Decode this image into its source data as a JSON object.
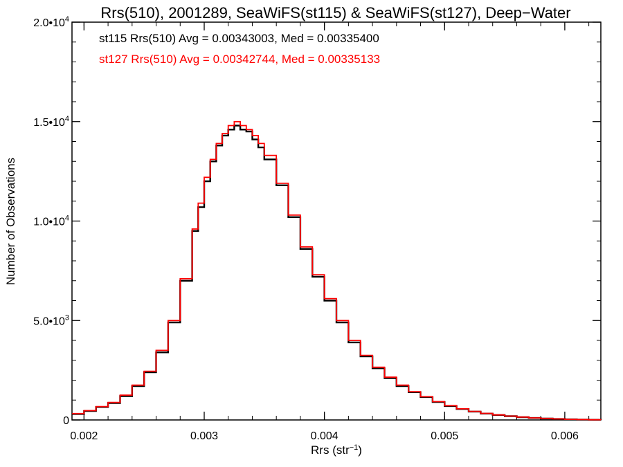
{
  "chart_data": {
    "type": "line",
    "title": "Rrs(510), 2001289, SeaWiFS(st115) & SeaWiFS(st127), Deep−Water",
    "xlabel": "Rrs (str",
    "xlabel_sup": "−1",
    "xlabel_close": ")",
    "ylabel": "Number of Observations",
    "xlim": [
      0.0019,
      0.0063
    ],
    "ylim": [
      0,
      20000
    ],
    "x_ticks": [
      0.002,
      0.003,
      0.004,
      0.005,
      0.006
    ],
    "x_tick_labels": [
      "0.002",
      "0.003",
      "0.004",
      "0.005",
      "0.006"
    ],
    "y_ticks": [
      0,
      5000,
      10000,
      15000,
      20000
    ],
    "y_tick_labels": [
      {
        "base": "0",
        "sup": ""
      },
      {
        "base": "5.0•10",
        "sup": "3"
      },
      {
        "base": "1.0•10",
        "sup": "4"
      },
      {
        "base": "1.5•10",
        "sup": "4"
      },
      {
        "base": "2.0•10",
        "sup": "4"
      }
    ],
    "grid": false,
    "legend_position": "top-left",
    "series": [
      {
        "name": "st115",
        "color": "#000000",
        "annotation": "st115 Rrs(510) Avg = 0.00343003, Med = 0.00335400",
        "x": [
          0.0019,
          0.002,
          0.0021,
          0.0022,
          0.0023,
          0.0024,
          0.0025,
          0.0026,
          0.0027,
          0.0028,
          0.0029,
          0.00295,
          0.003,
          0.00305,
          0.0031,
          0.00315,
          0.0032,
          0.00325,
          0.0033,
          0.00335,
          0.0034,
          0.00345,
          0.0035,
          0.0036,
          0.0037,
          0.0038,
          0.0039,
          0.004,
          0.0041,
          0.0042,
          0.0043,
          0.0044,
          0.0045,
          0.0046,
          0.0047,
          0.0048,
          0.0049,
          0.005,
          0.0051,
          0.0052,
          0.0053,
          0.0054,
          0.0055,
          0.0056,
          0.0057,
          0.0058,
          0.0059,
          0.006,
          0.0061,
          0.0062,
          0.0063
        ],
        "y": [
          300,
          450,
          650,
          850,
          1200,
          1700,
          2400,
          3400,
          4900,
          7000,
          9500,
          10700,
          12000,
          13000,
          13800,
          14300,
          14600,
          14800,
          14600,
          14500,
          14100,
          13700,
          13100,
          11800,
          10200,
          8600,
          7200,
          6000,
          4900,
          3900,
          3200,
          2600,
          2100,
          1700,
          1400,
          1150,
          900,
          700,
          550,
          420,
          320,
          250,
          190,
          140,
          100,
          70,
          50,
          30,
          20,
          10,
          5
        ]
      },
      {
        "name": "st127",
        "color": "#ff0000",
        "annotation": "st127 Rrs(510) Avg = 0.00342744, Med = 0.00335133",
        "x": [
          0.0019,
          0.002,
          0.0021,
          0.0022,
          0.0023,
          0.0024,
          0.0025,
          0.0026,
          0.0027,
          0.0028,
          0.0029,
          0.00295,
          0.003,
          0.00305,
          0.0031,
          0.00315,
          0.0032,
          0.00325,
          0.0033,
          0.00335,
          0.0034,
          0.00345,
          0.0035,
          0.0036,
          0.0037,
          0.0038,
          0.0039,
          0.004,
          0.0041,
          0.0042,
          0.0043,
          0.0044,
          0.0045,
          0.0046,
          0.0047,
          0.0048,
          0.0049,
          0.005,
          0.0051,
          0.0052,
          0.0053,
          0.0054,
          0.0055,
          0.0056,
          0.0057,
          0.0058,
          0.0059,
          0.006,
          0.0061,
          0.0062,
          0.0063
        ],
        "y": [
          320,
          470,
          670,
          880,
          1250,
          1750,
          2450,
          3500,
          5000,
          7100,
          9600,
          10900,
          12200,
          13100,
          13900,
          14400,
          14800,
          15000,
          14800,
          14600,
          14300,
          13900,
          13300,
          11900,
          10300,
          8700,
          7300,
          6100,
          5000,
          4000,
          3250,
          2650,
          2150,
          1750,
          1420,
          1170,
          920,
          720,
          560,
          430,
          330,
          255,
          195,
          145,
          105,
          75,
          52,
          32,
          22,
          12,
          6
        ]
      }
    ]
  }
}
